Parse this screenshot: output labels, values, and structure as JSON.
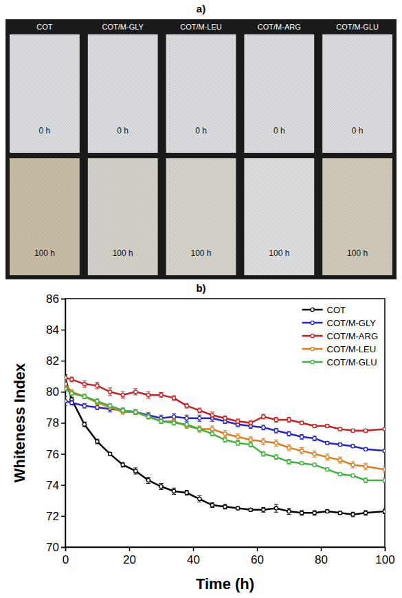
{
  "chart_data": [
    {
      "type": "image",
      "title": "a)",
      "samples": [
        "COT",
        "COT/M-GLY",
        "COT/M-LEU",
        "COT/M-ARG",
        "COT/M-GLU"
      ],
      "rows": [
        "0 h",
        "100 h"
      ]
    },
    {
      "type": "line",
      "title": "b)",
      "x_label": "Time (h)",
      "y_label": "Whiteness Index",
      "x": [
        0,
        2,
        6,
        10,
        14,
        18,
        22,
        26,
        30,
        34,
        38,
        42,
        46,
        50,
        54,
        58,
        62,
        66,
        70,
        74,
        78,
        82,
        86,
        90,
        94,
        100
      ],
      "xlim": [
        0,
        100
      ],
      "xticks": [
        0,
        20,
        40,
        60,
        80,
        100
      ],
      "ylim": [
        70,
        86
      ],
      "yticks": [
        70,
        72,
        74,
        76,
        78,
        80,
        82,
        84,
        86
      ],
      "grid": false,
      "legend": "upper right",
      "marker": "circle",
      "line_style": "solid",
      "series": [
        {
          "name": "COT",
          "color": "#000000",
          "values": [
            80.9,
            79.5,
            77.9,
            76.8,
            76.0,
            75.3,
            74.9,
            74.3,
            73.9,
            73.6,
            73.5,
            73.1,
            72.7,
            72.6,
            72.5,
            72.4,
            72.4,
            72.5,
            72.3,
            72.2,
            72.2,
            72.3,
            72.2,
            72.1,
            72.2,
            72.3
          ],
          "errors": [
            0.2,
            0.15,
            0.15,
            0.15,
            0.1,
            0.15,
            0.2,
            0.2,
            0.2,
            0.2,
            0.15,
            0.2,
            0.15,
            0.15,
            0.1,
            0.1,
            0.15,
            0.25,
            0.2,
            0.15,
            0.15,
            0.1,
            0.1,
            0.15,
            0.15,
            0.15
          ]
        },
        {
          "name": "COT/M-GLY",
          "color": "#2626c8",
          "values": [
            79.4,
            79.3,
            79.1,
            79.0,
            78.9,
            78.8,
            78.7,
            78.5,
            78.3,
            78.4,
            78.3,
            78.3,
            78.3,
            78.1,
            77.9,
            77.8,
            77.7,
            77.5,
            77.3,
            77.1,
            77.0,
            76.7,
            76.6,
            76.5,
            76.3,
            76.2
          ],
          "errors": [
            0.3,
            0.15,
            0.15,
            0.15,
            0.2,
            0.15,
            0.15,
            0.15,
            0.2,
            0.2,
            0.2,
            0.2,
            0.2,
            0.15,
            0.15,
            0.15,
            0.15,
            0.15,
            0.15,
            0.15,
            0.15,
            0.1,
            0.1,
            0.1,
            0.1,
            0.1
          ]
        },
        {
          "name": "COT/M-ARG",
          "color": "#c81e1e",
          "values": [
            80.9,
            80.8,
            80.5,
            80.4,
            80.0,
            79.8,
            80.0,
            79.8,
            79.8,
            79.6,
            79.1,
            78.8,
            78.5,
            78.3,
            78.1,
            78.0,
            78.4,
            78.2,
            78.2,
            78.0,
            77.8,
            77.8,
            77.6,
            77.5,
            77.5,
            77.6
          ],
          "errors": [
            0.15,
            0.15,
            0.2,
            0.2,
            0.25,
            0.2,
            0.2,
            0.2,
            0.15,
            0.15,
            0.15,
            0.15,
            0.2,
            0.15,
            0.15,
            0.15,
            0.15,
            0.15,
            0.15,
            0.1,
            0.1,
            0.1,
            0.1,
            0.1,
            0.1,
            0.1
          ]
        },
        {
          "name": "COT/M-LEU",
          "color": "#e07b1a",
          "values": [
            80.5,
            80.0,
            79.7,
            79.3,
            79.0,
            78.7,
            78.7,
            78.4,
            78.1,
            78.1,
            77.8,
            77.6,
            77.6,
            77.3,
            77.1,
            76.9,
            76.8,
            76.7,
            76.4,
            76.2,
            76.0,
            75.8,
            75.6,
            75.3,
            75.2,
            75.0
          ],
          "errors": [
            0.2,
            0.15,
            0.15,
            0.15,
            0.15,
            0.15,
            0.15,
            0.15,
            0.15,
            0.15,
            0.15,
            0.2,
            0.2,
            0.2,
            0.2,
            0.2,
            0.2,
            0.2,
            0.2,
            0.2,
            0.2,
            0.2,
            0.2,
            0.2,
            0.2,
            0.2
          ]
        },
        {
          "name": "COT/M-GLU",
          "color": "#3cb43c",
          "values": [
            80.2,
            79.9,
            79.7,
            79.4,
            79.1,
            78.8,
            78.7,
            78.4,
            78.1,
            78.0,
            77.9,
            77.6,
            77.3,
            76.9,
            76.7,
            76.6,
            76.0,
            75.8,
            75.5,
            75.4,
            75.3,
            75.0,
            74.7,
            74.6,
            74.3,
            74.3
          ],
          "errors": [
            0.15,
            0.15,
            0.15,
            0.15,
            0.15,
            0.15,
            0.15,
            0.15,
            0.15,
            0.15,
            0.15,
            0.15,
            0.15,
            0.15,
            0.15,
            0.15,
            0.15,
            0.15,
            0.15,
            0.1,
            0.1,
            0.1,
            0.1,
            0.1,
            0.15,
            0.15
          ]
        }
      ]
    }
  ]
}
